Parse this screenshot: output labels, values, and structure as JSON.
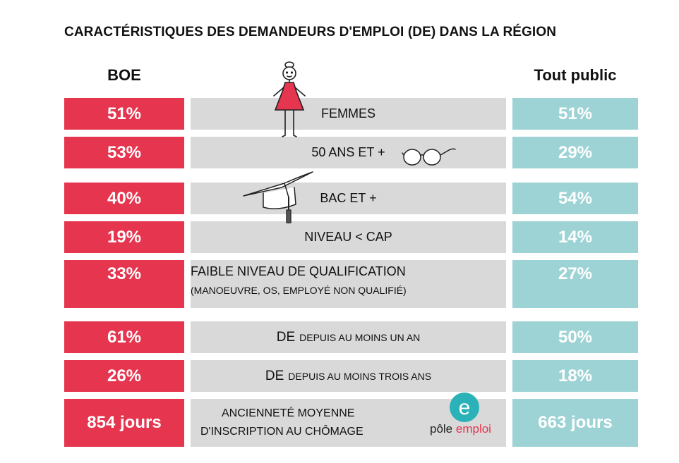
{
  "title": "CARACTÉRISTIQUES DES DEMANDEURS D'EMPLOI (DE) DANS LA RÉGION",
  "columns": {
    "left": "BOE",
    "right": "Tout public"
  },
  "rows": [
    {
      "left": "51%",
      "label": "FEMMES",
      "right": "51%"
    },
    {
      "left": "53%",
      "label": "50 ANS ET +",
      "right": "29%"
    },
    {
      "left": "40%",
      "label": "BAC ET +",
      "right": "54%"
    },
    {
      "left": "19%",
      "label": "NIVEAU < CAP",
      "right": "14%"
    },
    {
      "left": "33%",
      "label": "FAIBLE NIVEAU DE QUALIFICATION",
      "sublabel": "(MANOEUVRE, OS, EMPLOYÉ NON QUALIFIÉ)",
      "right": "27%"
    },
    {
      "left": "61%",
      "label_prefix": "DE",
      "label": "DEPUIS AU MOINS UN AN",
      "right": "50%"
    },
    {
      "left": "26%",
      "label_prefix": "DE",
      "label": "DEPUIS AU MOINS TROIS ANS",
      "right": "18%"
    },
    {
      "left": "854 jours",
      "label_line1": "ANCIENNETÉ MOYENNE",
      "label_line2": "D'INSCRIPTION AU CHÔMAGE",
      "right": "663 jours"
    }
  ],
  "logo": {
    "part1": "pôle",
    "part2": "emploi",
    "letter": "e"
  },
  "colors": {
    "boe": "#e5354f",
    "tout_public": "#9ed3d6",
    "label_bg": "#d9d9d9",
    "logo_teal": "#2bb1b8"
  },
  "icons": [
    "woman-figure-icon",
    "glasses-icon",
    "graduation-cap-icon",
    "pole-emploi-logo"
  ],
  "chart_data": {
    "type": "table",
    "title": "CARACTÉRISTIQUES DES DEMANDEURS D'EMPLOI (DE) DANS LA RÉGION",
    "columns": [
      "BOE",
      "Tout public"
    ],
    "categories": [
      "FEMMES",
      "50 ANS ET +",
      "BAC ET +",
      "NIVEAU < CAP",
      "FAIBLE NIVEAU DE QUALIFICATION",
      "DE DEPUIS AU MOINS UN AN",
      "DE DEPUIS AU MOINS TROIS ANS",
      "ANCIENNETÉ MOYENNE D'INSCRIPTION AU CHÔMAGE"
    ],
    "series": [
      {
        "name": "BOE",
        "values": [
          51,
          53,
          40,
          19,
          33,
          61,
          26,
          854
        ]
      },
      {
        "name": "Tout public",
        "values": [
          51,
          29,
          54,
          14,
          27,
          50,
          18,
          663
        ]
      }
    ]
  }
}
